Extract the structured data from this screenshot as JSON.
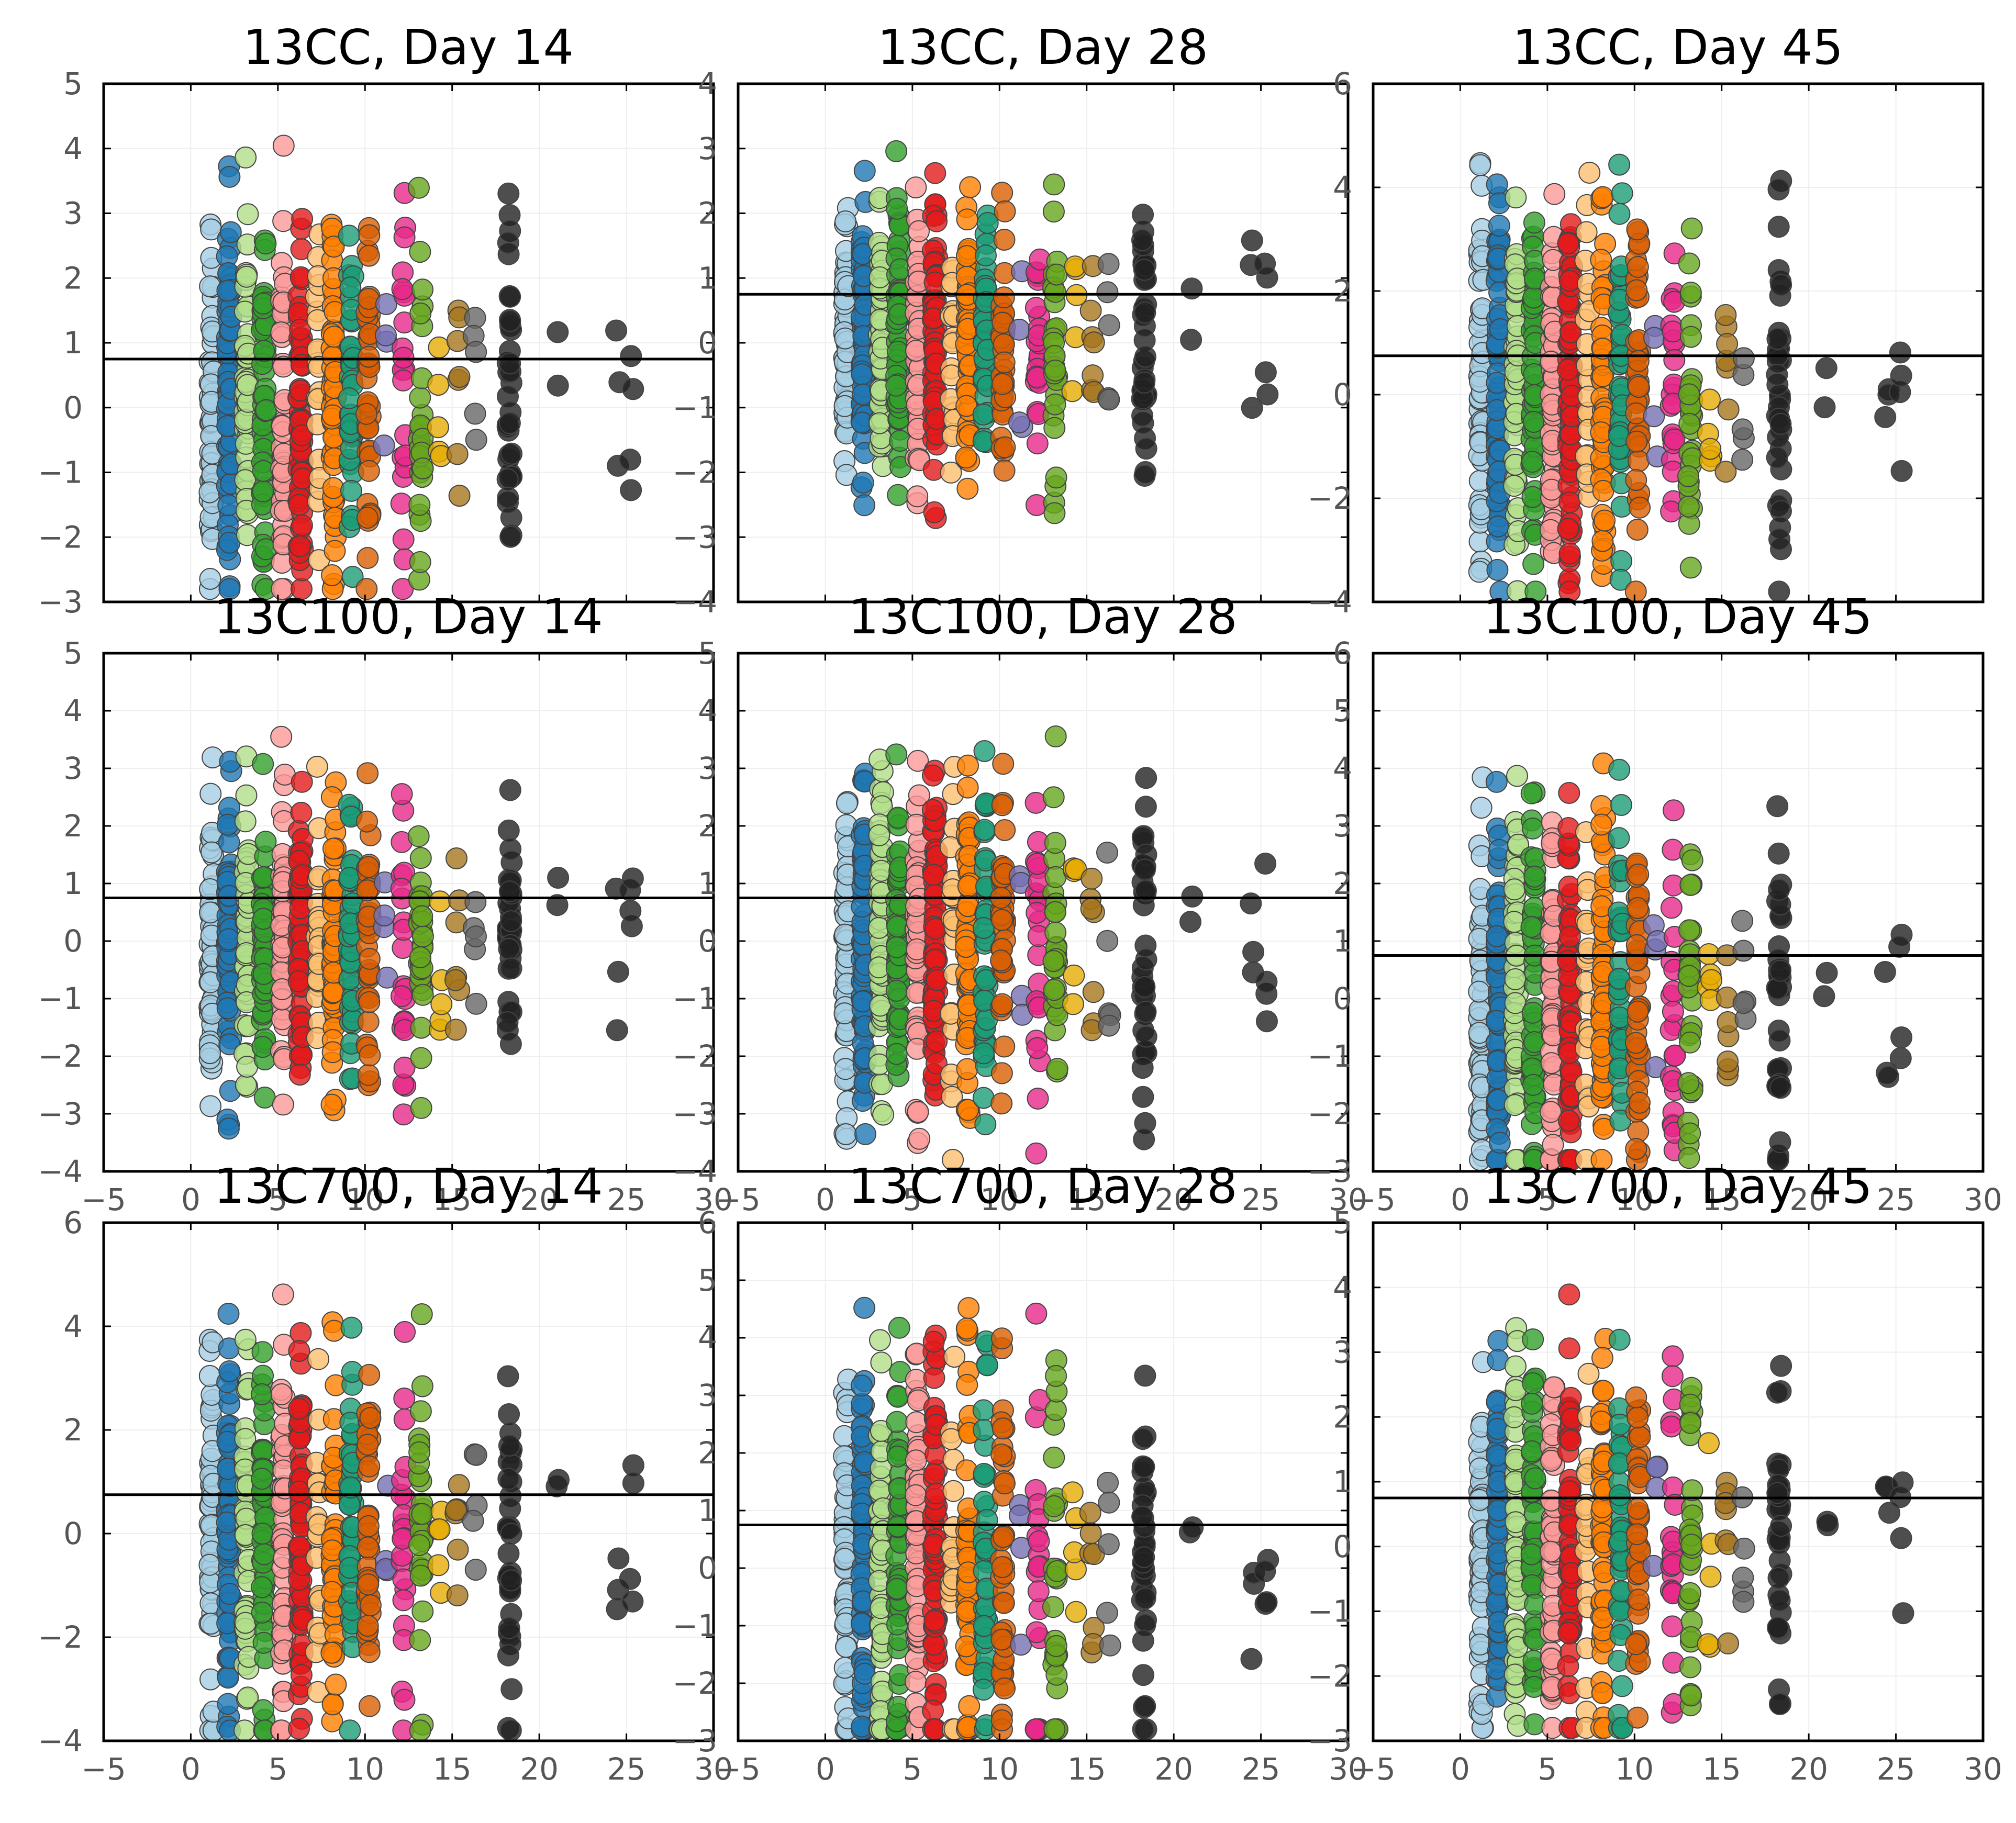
{
  "chart_data": [
    {
      "type": "scatter",
      "title": "13CC, Day 14",
      "xlim": [
        -5,
        30
      ],
      "ylim": [
        -3,
        5
      ],
      "xticks": [],
      "yticks": [
        -3,
        -2,
        -1,
        0,
        1,
        2,
        3,
        4,
        5
      ],
      "hline": 0.75,
      "grid": true,
      "seed": 11,
      "max_dev": 4.3
    },
    {
      "type": "scatter",
      "title": "13CC, Day 28",
      "xlim": [
        -5,
        30
      ],
      "ylim": [
        -4,
        4
      ],
      "xticks": [],
      "yticks": [
        -4,
        -3,
        -2,
        -1,
        0,
        1,
        2,
        3,
        4
      ],
      "hline": 0.75,
      "grid": true,
      "seed": 12,
      "max_dev": 3.2
    },
    {
      "type": "scatter",
      "title": "13CC, Day 45",
      "xlim": [
        -5,
        30
      ],
      "ylim": [
        -4,
        6
      ],
      "xticks": [],
      "yticks": [
        -4,
        -2,
        0,
        2,
        4,
        6
      ],
      "hline": 0.75,
      "grid": true,
      "seed": 13,
      "max_dev": 5.3
    },
    {
      "type": "scatter",
      "title": "13C100, Day 14",
      "xlim": [
        -5,
        30
      ],
      "ylim": [
        -4,
        5
      ],
      "xticks": [
        -5,
        0,
        5,
        10,
        15,
        20,
        25,
        30
      ],
      "yticks": [
        -4,
        -3,
        -2,
        -1,
        0,
        1,
        2,
        3,
        4,
        5
      ],
      "hline": 0.75,
      "grid": true,
      "seed": 21,
      "max_dev": 3.8
    },
    {
      "type": "scatter",
      "title": "13C100, Day 28",
      "xlim": [
        -5,
        30
      ],
      "ylim": [
        -4,
        5
      ],
      "xticks": [
        -5,
        0,
        5,
        10,
        15,
        20,
        25,
        30
      ],
      "yticks": [
        -4,
        -3,
        -2,
        -1,
        0,
        1,
        2,
        3,
        4,
        5
      ],
      "hline": 0.75,
      "grid": true,
      "seed": 22,
      "max_dev": 4.4
    },
    {
      "type": "scatter",
      "title": "13C100, Day 45",
      "xlim": [
        -5,
        30
      ],
      "ylim": [
        -3,
        6
      ],
      "xticks": [
        -5,
        0,
        5,
        10,
        15,
        20,
        25,
        30
      ],
      "yticks": [
        -3,
        -2,
        -1,
        0,
        1,
        2,
        3,
        4,
        5,
        6
      ],
      "hline": 0.75,
      "grid": true,
      "seed": 23,
      "max_dev": 4.7
    },
    {
      "type": "scatter",
      "title": "13C700, Day 14",
      "xlim": [
        -5,
        30
      ],
      "ylim": [
        -4,
        6
      ],
      "xticks": [
        -5,
        0,
        5,
        10,
        15,
        20,
        25,
        30
      ],
      "yticks": [
        -4,
        -2,
        0,
        2,
        4,
        6
      ],
      "hline": 0.75,
      "grid": true,
      "seed": 31,
      "max_dev": 5.4
    },
    {
      "type": "scatter",
      "title": "13C700, Day 28",
      "xlim": [
        -5,
        30
      ],
      "ylim": [
        -3,
        6
      ],
      "xticks": [
        -5,
        0,
        5,
        10,
        15,
        20,
        25,
        30
      ],
      "yticks": [
        -3,
        -2,
        -1,
        0,
        1,
        2,
        3,
        4,
        5,
        6
      ],
      "hline": 0.75,
      "grid": true,
      "seed": 32,
      "max_dev": 5.4
    },
    {
      "type": "scatter",
      "title": "13C700, Day 45",
      "xlim": [
        -5,
        30
      ],
      "ylim": [
        -3,
        5
      ],
      "xticks": [
        -5,
        0,
        5,
        10,
        15,
        20,
        25,
        30
      ],
      "yticks": [
        -3,
        -2,
        -1,
        0,
        1,
        2,
        3,
        4,
        5
      ],
      "hline": 0.75,
      "grid": true,
      "seed": 33,
      "max_dev": 4.3
    }
  ],
  "groups": [
    {
      "x": 1.2,
      "color": "#a6cee3",
      "n": 60
    },
    {
      "x": 2.2,
      "color": "#1f78b4",
      "n": 75
    },
    {
      "x": 3.2,
      "color": "#b2df8a",
      "n": 55
    },
    {
      "x": 4.2,
      "color": "#33a02c",
      "n": 55
    },
    {
      "x": 5.3,
      "color": "#fb9a99",
      "n": 55
    },
    {
      "x": 6.3,
      "color": "#e31a1c",
      "n": 70
    },
    {
      "x": 7.3,
      "color": "#fdbf6f",
      "n": 20
    },
    {
      "x": 8.2,
      "color": "#ff7f00",
      "n": 55
    },
    {
      "x": 9.2,
      "color": "#1b9e77",
      "n": 40
    },
    {
      "x": 10.2,
      "color": "#d95f02",
      "n": 40
    },
    {
      "x": 11.2,
      "color": "#7570b3",
      "n": 4
    },
    {
      "x": 12.2,
      "color": "#e7298a",
      "n": 22
    },
    {
      "x": 13.2,
      "color": "#66a61e",
      "n": 28
    },
    {
      "x": 14.3,
      "color": "#e6ab02",
      "n": 5
    },
    {
      "x": 15.3,
      "color": "#a6761d",
      "n": 7
    },
    {
      "x": 16.3,
      "color": "#666666",
      "n": 5
    },
    {
      "x": 18.3,
      "color": "#222222",
      "n": 35
    },
    {
      "x": 21.0,
      "color": "#222222",
      "n": 2
    },
    {
      "x": 24.5,
      "color": "#222222",
      "n": 3
    },
    {
      "x": 25.3,
      "color": "#222222",
      "n": 4
    }
  ]
}
